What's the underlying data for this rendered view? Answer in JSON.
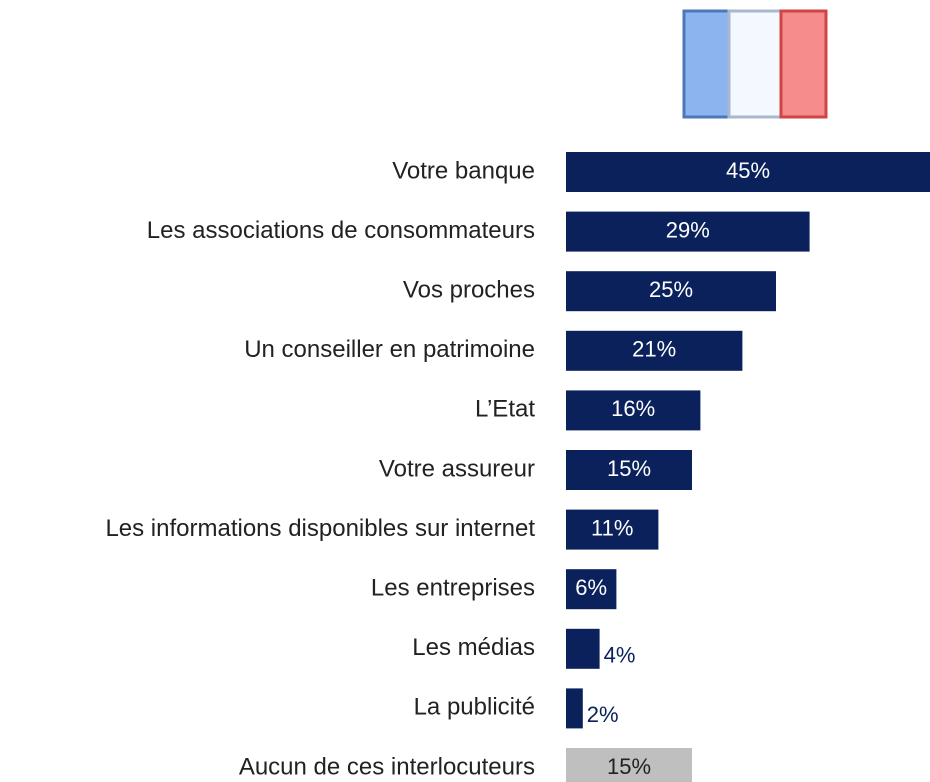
{
  "chart_data": {
    "type": "bar",
    "orientation": "horizontal",
    "categories": [
      "Votre banque",
      "Les associations de consommateurs",
      "Vos proches",
      "Un conseiller en patrimoine",
      "L’Etat",
      "Votre assureur",
      "Les informations disponibles sur internet",
      "Les entreprises",
      "Les médias",
      "La publicité",
      "Aucun de ces interlocuteurs"
    ],
    "values": [
      45,
      29,
      25,
      21,
      16,
      15,
      11,
      6,
      4,
      2,
      15
    ],
    "value_labels": [
      "45%",
      "29%",
      "25%",
      "21%",
      "16%",
      "15%",
      "11%",
      "6%",
      "4%",
      "2%",
      "15%"
    ],
    "colors": [
      "#0a215c",
      "#0a215c",
      "#0a215c",
      "#0a215c",
      "#0a215c",
      "#0a215c",
      "#0a215c",
      "#0a215c",
      "#0a215c",
      "#0a215c",
      "#bfbfbf"
    ]
  }
}
